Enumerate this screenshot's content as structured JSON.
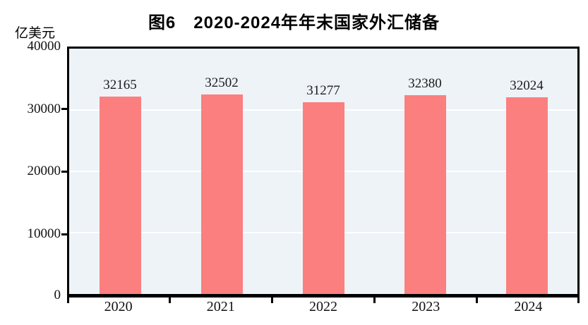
{
  "chart_data": {
    "type": "bar",
    "title": "图6　2020-2024年年末国家外汇储备",
    "unit": "亿美元",
    "xlabel": "",
    "ylabel": "亿美元",
    "categories": [
      "2020",
      "2021",
      "2022",
      "2023",
      "2024"
    ],
    "values": [
      32165,
      32502,
      31277,
      32380,
      32024
    ],
    "series": [
      {
        "name": "年末国家外汇储备",
        "values": [
          32165,
          32502,
          31277,
          32380,
          32024
        ]
      }
    ],
    "ylim": [
      0,
      40000
    ],
    "yticks": [
      "40000",
      "30000",
      "20000",
      "10000",
      "0"
    ],
    "grid": "horizontal-white-lines-at-10000-20000-30000",
    "legend_position": "none",
    "data_labels_shown": true,
    "colors": {
      "bar_fill": "#fc7f7f",
      "plot_background": "#edf3f7",
      "axis_border": "#000000",
      "gridline": "#ffffff",
      "text": "#111111"
    }
  }
}
